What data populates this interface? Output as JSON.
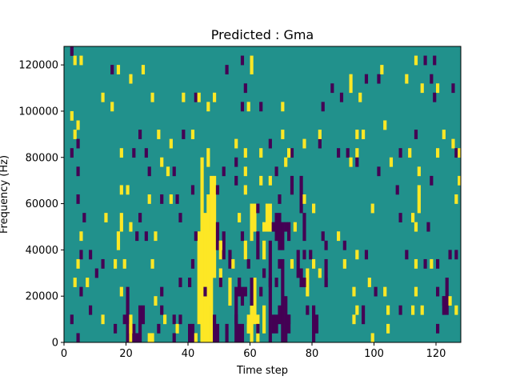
{
  "chart_data": {
    "type": "heatmap",
    "title": "Predicted : Gma",
    "xlabel": "Time step",
    "ylabel": "Frequency (Hz)",
    "xlim": [
      0,
      128
    ],
    "ylim": [
      0,
      128000
    ],
    "x_ticks": [
      0,
      20,
      40,
      60,
      80,
      100,
      120
    ],
    "y_ticks": [
      0,
      20000,
      40000,
      60000,
      80000,
      100000,
      120000
    ],
    "x_tick_labels": [
      "0",
      "20",
      "40",
      "60",
      "80",
      "100",
      "120"
    ],
    "y_tick_labels": [
      "0",
      "20000",
      "40000",
      "60000",
      "80000",
      "100000",
      "120000"
    ],
    "grid": false,
    "values_legend": {
      "low": -1,
      "mid": 0,
      "high": 1
    },
    "colors": {
      "low": "#440154",
      "mid": "#21918c",
      "high": "#fde725"
    },
    "background_value": 0,
    "cell_height_hz": 4000,
    "cells": [
      [
        2,
        124000,
        -1
      ],
      [
        3,
        120000,
        1
      ],
      [
        5,
        120000,
        1
      ],
      [
        15,
        116000,
        -1
      ],
      [
        17,
        116000,
        1
      ],
      [
        25,
        116000,
        1
      ],
      [
        21,
        112000,
        1
      ],
      [
        52,
        116000,
        -1
      ],
      [
        57,
        120000,
        -1
      ],
      [
        60,
        120000,
        1
      ],
      [
        60,
        116000,
        1
      ],
      [
        12,
        104000,
        1
      ],
      [
        15,
        100000,
        1
      ],
      [
        28,
        104000,
        1
      ],
      [
        38,
        104000,
        1
      ],
      [
        42,
        104000,
        -1
      ],
      [
        43,
        104000,
        1
      ],
      [
        46,
        100000,
        1
      ],
      [
        48,
        104000,
        1
      ],
      [
        58,
        108000,
        -1
      ],
      [
        57,
        100000,
        -1
      ],
      [
        59,
        100000,
        1
      ],
      [
        63,
        100000,
        -1
      ],
      [
        70,
        100000,
        1
      ],
      [
        83,
        100000,
        -1
      ],
      [
        86,
        108000,
        -1
      ],
      [
        89,
        104000,
        -1
      ],
      [
        92,
        112000,
        1
      ],
      [
        92,
        108000,
        1
      ],
      [
        95,
        104000,
        1
      ],
      [
        97,
        112000,
        -1
      ],
      [
        101,
        112000,
        -1
      ],
      [
        102,
        116000,
        1
      ],
      [
        110,
        112000,
        1
      ],
      [
        113,
        120000,
        1
      ],
      [
        116,
        120000,
        -1
      ],
      [
        119,
        120000,
        -1
      ],
      [
        115,
        108000,
        1
      ],
      [
        118,
        112000,
        -1
      ],
      [
        119,
        104000,
        -1
      ],
      [
        120,
        108000,
        1
      ],
      [
        125,
        108000,
        -1
      ],
      [
        2,
        96000,
        1
      ],
      [
        3,
        88000,
        1
      ],
      [
        4,
        92000,
        1
      ],
      [
        4,
        84000,
        -1
      ],
      [
        24,
        88000,
        -1
      ],
      [
        30,
        88000,
        1
      ],
      [
        34,
        84000,
        1
      ],
      [
        38,
        88000,
        -1
      ],
      [
        41,
        88000,
        1
      ],
      [
        46,
        80000,
        1
      ],
      [
        55,
        84000,
        1
      ],
      [
        66,
        84000,
        -1
      ],
      [
        70,
        88000,
        1
      ],
      [
        73,
        80000,
        -1
      ],
      [
        77,
        84000,
        1
      ],
      [
        82,
        84000,
        -1
      ],
      [
        82,
        88000,
        1
      ],
      [
        91,
        80000,
        -1
      ],
      [
        94,
        88000,
        1
      ],
      [
        94,
        80000,
        1
      ],
      [
        96,
        88000,
        1
      ],
      [
        103,
        92000,
        1
      ],
      [
        108,
        80000,
        -1
      ],
      [
        111,
        80000,
        1
      ],
      [
        105,
        76000,
        1
      ],
      [
        113,
        88000,
        -1
      ],
      [
        122,
        88000,
        1
      ],
      [
        125,
        84000,
        1
      ],
      [
        126,
        80000,
        -1
      ],
      [
        2,
        80000,
        -1
      ],
      [
        4,
        72000,
        -1
      ],
      [
        18,
        80000,
        1
      ],
      [
        22,
        80000,
        -1
      ],
      [
        26,
        80000,
        -1
      ],
      [
        27,
        72000,
        -1
      ],
      [
        31,
        76000,
        1
      ],
      [
        33,
        72000,
        1
      ],
      [
        35,
        72000,
        -1
      ],
      [
        44,
        76000,
        1
      ],
      [
        46,
        76000,
        1
      ],
      [
        51,
        72000,
        -1
      ],
      [
        55,
        76000,
        -1
      ],
      [
        58,
        72000,
        1
      ],
      [
        58,
        80000,
        1
      ],
      [
        63,
        80000,
        1
      ],
      [
        66,
        68000,
        1
      ],
      [
        68,
        72000,
        -1
      ],
      [
        71,
        76000,
        1
      ],
      [
        72,
        80000,
        1
      ],
      [
        88,
        80000,
        -1
      ],
      [
        92,
        76000,
        1
      ],
      [
        94,
        76000,
        -1
      ],
      [
        101,
        72000,
        -1
      ],
      [
        114,
        72000,
        1
      ],
      [
        118,
        68000,
        -1
      ],
      [
        120,
        80000,
        1
      ],
      [
        127,
        80000,
        1
      ],
      [
        127,
        68000,
        1
      ],
      [
        4,
        60000,
        -1
      ],
      [
        18,
        64000,
        1
      ],
      [
        20,
        64000,
        1
      ],
      [
        27,
        60000,
        1
      ],
      [
        31,
        60000,
        -1
      ],
      [
        34,
        60000,
        1
      ],
      [
        36,
        60000,
        -1
      ],
      [
        41,
        64000,
        -1
      ],
      [
        48,
        68000,
        1
      ],
      [
        49,
        64000,
        -1
      ],
      [
        55,
        68000,
        -1
      ],
      [
        58,
        64000,
        1
      ],
      [
        63,
        68000,
        1
      ],
      [
        69,
        60000,
        -1
      ],
      [
        73,
        64000,
        -1
      ],
      [
        73,
        68000,
        -1
      ],
      [
        77,
        60000,
        1
      ],
      [
        80,
        56000,
        1
      ],
      [
        99,
        56000,
        1
      ],
      [
        107,
        64000,
        -1
      ],
      [
        114,
        64000,
        1
      ],
      [
        114,
        60000,
        1
      ],
      [
        114,
        56000,
        1
      ],
      [
        112,
        52000,
        1
      ],
      [
        108,
        52000,
        -1
      ],
      [
        113,
        48000,
        1
      ],
      [
        117,
        48000,
        -1
      ],
      [
        126,
        60000,
        1
      ],
      [
        6,
        52000,
        -1
      ],
      [
        5,
        44000,
        1
      ],
      [
        13,
        52000,
        1
      ],
      [
        18,
        52000,
        1
      ],
      [
        18,
        48000,
        1
      ],
      [
        17,
        44000,
        1
      ],
      [
        17,
        40000,
        1
      ],
      [
        21,
        48000,
        1
      ],
      [
        24,
        52000,
        -1
      ],
      [
        23,
        44000,
        -1
      ],
      [
        26,
        44000,
        -1
      ],
      [
        29,
        44000,
        1
      ],
      [
        37,
        52000,
        -1
      ],
      [
        42,
        44000,
        -1
      ],
      [
        46,
        40000,
        1
      ],
      [
        50,
        40000,
        1
      ],
      [
        56,
        52000,
        1
      ],
      [
        57,
        44000,
        -1
      ],
      [
        62,
        56000,
        -1
      ],
      [
        64,
        48000,
        1
      ],
      [
        67,
        48000,
        -1
      ],
      [
        71,
        48000,
        -1
      ],
      [
        74,
        48000,
        1
      ],
      [
        83,
        44000,
        -1
      ],
      [
        84,
        40000,
        -1
      ],
      [
        88,
        44000,
        1
      ],
      [
        90,
        40000,
        -1
      ],
      [
        5,
        36000,
        -1
      ],
      [
        4,
        32000,
        1
      ],
      [
        8,
        36000,
        -1
      ],
      [
        12,
        32000,
        -1
      ],
      [
        16,
        32000,
        1
      ],
      [
        19,
        32000,
        1
      ],
      [
        28,
        32000,
        1
      ],
      [
        41,
        32000,
        -1
      ],
      [
        54,
        32000,
        1
      ],
      [
        59,
        32000,
        -1
      ],
      [
        64,
        28000,
        -1
      ],
      [
        69,
        32000,
        -1
      ],
      [
        73,
        32000,
        1
      ],
      [
        77,
        36000,
        -1
      ],
      [
        79,
        36000,
        -1
      ],
      [
        80,
        32000,
        1
      ],
      [
        82,
        28000,
        1
      ],
      [
        84,
        32000,
        -1
      ],
      [
        90,
        32000,
        1
      ],
      [
        94,
        36000,
        1
      ],
      [
        97,
        36000,
        -1
      ],
      [
        110,
        36000,
        -1
      ],
      [
        113,
        32000,
        1
      ],
      [
        116,
        32000,
        -1
      ],
      [
        118,
        32000,
        1
      ],
      [
        120,
        32000,
        -1
      ],
      [
        124,
        36000,
        -1
      ],
      [
        126,
        36000,
        -1
      ],
      [
        3,
        24000,
        1
      ],
      [
        5,
        20000,
        -1
      ],
      [
        7,
        24000,
        1
      ],
      [
        10,
        28000,
        -1
      ],
      [
        18,
        20000,
        1
      ],
      [
        31,
        20000,
        -1
      ],
      [
        37,
        24000,
        -1
      ],
      [
        40,
        24000,
        -1
      ],
      [
        45,
        20000,
        -1
      ],
      [
        50,
        24000,
        -1
      ],
      [
        56,
        24000,
        -1
      ],
      [
        58,
        20000,
        -1
      ],
      [
        63,
        20000,
        -1
      ],
      [
        66,
        24000,
        -1
      ],
      [
        68,
        24000,
        -1
      ],
      [
        77,
        24000,
        -1
      ],
      [
        84,
        24000,
        -1
      ],
      [
        93,
        20000,
        1
      ],
      [
        98,
        24000,
        1
      ],
      [
        100,
        20000,
        -1
      ],
      [
        103,
        20000,
        1
      ],
      [
        113,
        20000,
        1
      ],
      [
        120,
        20000,
        -1
      ],
      [
        124,
        16000,
        1
      ],
      [
        126,
        12000,
        1
      ],
      [
        2,
        8000,
        -1
      ],
      [
        4,
        0,
        -1
      ],
      [
        8,
        12000,
        -1
      ],
      [
        12,
        8000,
        1
      ],
      [
        16,
        4000,
        -1
      ],
      [
        19,
        8000,
        -1
      ],
      [
        21,
        4000,
        1
      ],
      [
        30,
        4000,
        -1
      ],
      [
        32,
        8000,
        1
      ],
      [
        35,
        8000,
        -1
      ],
      [
        36,
        4000,
        1
      ],
      [
        55,
        8000,
        -1
      ],
      [
        59,
        4000,
        1
      ],
      [
        62,
        4000,
        -1
      ],
      [
        72,
        8000,
        -1
      ],
      [
        78,
        12000,
        -1
      ],
      [
        93,
        8000,
        1
      ],
      [
        94,
        12000,
        1
      ],
      [
        96,
        12000,
        -1
      ],
      [
        104,
        12000,
        1
      ],
      [
        108,
        12000,
        -1
      ],
      [
        112,
        12000,
        1
      ],
      [
        115,
        12000,
        1
      ],
      [
        99,
        0,
        1
      ],
      [
        104,
        4000,
        1
      ],
      [
        120,
        4000,
        -1
      ],
      [
        31,
        12000,
        -1
      ],
      [
        29,
        16000,
        1
      ],
      [
        96,
        8000,
        -1
      ],
      [
        35,
        0,
        -1
      ],
      [
        37,
        8000,
        -1
      ],
      [
        122,
        16000,
        -1
      ],
      [
        27,
        0,
        1
      ],
      [
        28,
        0,
        1
      ]
    ],
    "columns": [
      [
        20,
        0,
        24000,
        -1
      ],
      [
        21,
        0,
        12000,
        1
      ],
      [
        22,
        0,
        8000,
        -1
      ],
      [
        23,
        0,
        4000,
        -1
      ],
      [
        24,
        0,
        16000,
        -1
      ],
      [
        25,
        8000,
        16000,
        -1
      ],
      [
        40,
        0,
        8000,
        -1
      ],
      [
        41,
        0,
        8000,
        -1
      ],
      [
        42,
        0,
        4000,
        1
      ],
      [
        43,
        8000,
        48000,
        1
      ],
      [
        44,
        0,
        76000,
        1
      ],
      [
        45,
        0,
        56000,
        1
      ],
      [
        46,
        0,
        64000,
        1
      ],
      [
        47,
        0,
        24000,
        1
      ],
      [
        48,
        0,
        12000,
        -1
      ],
      [
        49,
        0,
        8000,
        -1
      ],
      [
        50,
        24000,
        32000,
        1
      ],
      [
        52,
        0,
        8000,
        -1
      ],
      [
        53,
        16000,
        28000,
        1
      ],
      [
        55,
        0,
        12000,
        -1
      ],
      [
        56,
        0,
        8000,
        -1
      ],
      [
        57,
        0,
        8000,
        -1
      ],
      [
        58,
        36000,
        44000,
        1
      ],
      [
        59,
        4000,
        12000,
        1
      ],
      [
        60,
        0,
        24000,
        1
      ],
      [
        61,
        8000,
        28000,
        1
      ],
      [
        62,
        0,
        12000,
        1
      ],
      [
        64,
        4000,
        16000,
        1
      ],
      [
        66,
        0,
        44000,
        -1
      ],
      [
        67,
        4000,
        12000,
        -1
      ],
      [
        68,
        4000,
        12000,
        -1
      ],
      [
        69,
        8000,
        16000,
        -1
      ],
      [
        70,
        0,
        36000,
        -1
      ],
      [
        71,
        0,
        20000,
        -1
      ],
      [
        72,
        4000,
        12000,
        -1
      ],
      [
        60,
        44000,
        60000,
        1
      ],
      [
        61,
        48000,
        60000,
        1
      ],
      [
        65,
        48000,
        60000,
        1
      ],
      [
        66,
        48000,
        60000,
        1
      ],
      [
        68,
        44000,
        56000,
        -1
      ],
      [
        69,
        40000,
        56000,
        -1
      ],
      [
        76,
        56000,
        72000,
        -1
      ],
      [
        77,
        44000,
        56000,
        -1
      ],
      [
        46,
        16000,
        48000,
        1
      ],
      [
        47,
        24000,
        72000,
        1
      ],
      [
        48,
        28000,
        68000,
        1
      ],
      [
        49,
        40000,
        52000,
        -1
      ],
      [
        50,
        36000,
        44000,
        1
      ],
      [
        51,
        36000,
        48000,
        -1
      ],
      [
        53,
        32000,
        40000,
        -1
      ],
      [
        55,
        12000,
        24000,
        -1
      ],
      [
        56,
        20000,
        28000,
        -1
      ],
      [
        57,
        16000,
        24000,
        -1
      ],
      [
        60,
        16000,
        28000,
        -1
      ],
      [
        62,
        36000,
        48000,
        -1
      ],
      [
        64,
        36000,
        44000,
        1
      ],
      [
        70,
        40000,
        52000,
        -1
      ],
      [
        72,
        44000,
        52000,
        -1
      ],
      [
        75,
        28000,
        40000,
        -1
      ],
      [
        76,
        24000,
        32000,
        -1
      ],
      [
        78,
        20000,
        32000,
        1
      ],
      [
        80,
        0,
        16000,
        -1
      ],
      [
        81,
        4000,
        12000,
        -1
      ],
      [
        84,
        24000,
        32000,
        -1
      ],
      [
        123,
        12000,
        28000,
        -1
      ],
      [
        122,
        12000,
        20000,
        -1
      ],
      [
        128,
        0,
        0,
        0
      ]
    ]
  }
}
